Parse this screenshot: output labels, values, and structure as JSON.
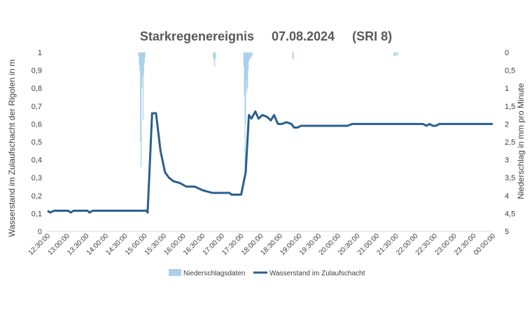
{
  "chart_data": {
    "type": "line",
    "title": "Starkregenereignis     07.08.2024     (SRI 8)",
    "ylabel_left": "Wasserstand im Zulaufschacht der Rigolen in m",
    "ylabel_right": "Niederschlag in mm pro Minute",
    "ylim_left": [
      0,
      1
    ],
    "ylim_right_inverted": [
      0,
      5
    ],
    "left_ticks": [
      "0",
      "0,1",
      "0,2",
      "0,3",
      "0,4",
      "0,5",
      "0,6",
      "0,7",
      "0,8",
      "0,9",
      "1"
    ],
    "right_ticks": [
      "0",
      "0,5",
      "1",
      "1,5",
      "2",
      "2,5",
      "3",
      "3,5",
      "4",
      "4,5",
      "5"
    ],
    "x_ticks": [
      "12:30:00",
      "13:00:00",
      "13:30:00",
      "14:00:00",
      "14:30:00",
      "15:00:00",
      "15:30:00",
      "16:00:00",
      "16:30:00",
      "17:00:00",
      "17:30:00",
      "18:00:00",
      "18:30:00",
      "19:00:00",
      "19:30:00",
      "20:00:00",
      "20:30:00",
      "21:00:00",
      "21:30:00",
      "22:00:00",
      "22:30:00",
      "23:00:00",
      "23:30:00",
      "00:00:00"
    ],
    "grid": false,
    "legend_position": "bottom",
    "series": [
      {
        "name": "Niederschlagsdaten",
        "kind": "bar",
        "axis": "right",
        "color": "#a9d1ea",
        "points": [
          [
            "14:51",
            0.1
          ],
          [
            "14:52",
            0.35
          ],
          [
            "14:53",
            0.5
          ],
          [
            "14:54",
            2.5
          ],
          [
            "14:55",
            3.2
          ],
          [
            "14:56",
            1.0
          ],
          [
            "14:57",
            0.7
          ],
          [
            "14:58",
            1.9
          ],
          [
            "14:59",
            0.6
          ],
          [
            "15:00",
            0.3
          ],
          [
            "15:01",
            0.15
          ],
          [
            "16:47",
            0.15
          ],
          [
            "16:48",
            0.2
          ],
          [
            "16:49",
            0.4
          ],
          [
            "16:50",
            0.2
          ],
          [
            "17:34",
            0.4
          ],
          [
            "17:35",
            1.2
          ],
          [
            "17:36",
            3.4
          ],
          [
            "17:37",
            2.0
          ],
          [
            "17:38",
            0.8
          ],
          [
            "17:39",
            1.1
          ],
          [
            "17:40",
            1.0
          ],
          [
            "17:41",
            0.5
          ],
          [
            "17:42",
            0.25
          ],
          [
            "17:43",
            0.15
          ],
          [
            "17:44",
            0.2
          ],
          [
            "17:45",
            0.1
          ],
          [
            "17:46",
            0.15
          ],
          [
            "17:47",
            0.1
          ],
          [
            "18:50",
            0.15
          ],
          [
            "18:51",
            0.2
          ],
          [
            "21:27",
            0.1
          ],
          [
            "21:28",
            0.1
          ],
          [
            "21:29",
            0.05
          ],
          [
            "21:30",
            0.1
          ],
          [
            "21:31",
            0.05
          ],
          [
            "21:33",
            0.08
          ]
        ]
      },
      {
        "name": "Wasserstand im Zulaufschacht",
        "kind": "line",
        "axis": "left",
        "color": "#2a5f8f",
        "points": [
          [
            "12:30",
            0.115
          ],
          [
            "12:34",
            0.105
          ],
          [
            "12:40",
            0.115
          ],
          [
            "12:48",
            0.115
          ],
          [
            "12:55",
            0.115
          ],
          [
            "13:02",
            0.115
          ],
          [
            "13:06",
            0.105
          ],
          [
            "13:10",
            0.115
          ],
          [
            "13:15",
            0.115
          ],
          [
            "13:25",
            0.115
          ],
          [
            "13:32",
            0.115
          ],
          [
            "13:35",
            0.105
          ],
          [
            "13:40",
            0.115
          ],
          [
            "13:45",
            0.115
          ],
          [
            "14:00",
            0.115
          ],
          [
            "14:30",
            0.115
          ],
          [
            "14:50",
            0.115
          ],
          [
            "15:03",
            0.115
          ],
          [
            "15:05",
            0.105
          ],
          [
            "15:12",
            0.66
          ],
          [
            "15:18",
            0.66
          ],
          [
            "15:25",
            0.45
          ],
          [
            "15:32",
            0.33
          ],
          [
            "15:38",
            0.3
          ],
          [
            "15:45",
            0.28
          ],
          [
            "15:55",
            0.27
          ],
          [
            "16:05",
            0.25
          ],
          [
            "16:18",
            0.25
          ],
          [
            "16:30",
            0.23
          ],
          [
            "16:40",
            0.22
          ],
          [
            "16:45",
            0.215
          ],
          [
            "17:00",
            0.215
          ],
          [
            "17:12",
            0.215
          ],
          [
            "17:15",
            0.205
          ],
          [
            "17:25",
            0.205
          ],
          [
            "17:30",
            0.205
          ],
          [
            "17:37",
            0.33
          ],
          [
            "17:42",
            0.65
          ],
          [
            "17:46",
            0.63
          ],
          [
            "17:52",
            0.67
          ],
          [
            "17:57",
            0.63
          ],
          [
            "18:03",
            0.65
          ],
          [
            "18:10",
            0.64
          ],
          [
            "18:16",
            0.62
          ],
          [
            "18:21",
            0.65
          ],
          [
            "18:27",
            0.6
          ],
          [
            "18:33",
            0.6
          ],
          [
            "18:40",
            0.61
          ],
          [
            "18:48",
            0.6
          ],
          [
            "18:52",
            0.58
          ],
          [
            "18:57",
            0.58
          ],
          [
            "19:03",
            0.59
          ],
          [
            "19:45",
            0.59
          ],
          [
            "20:15",
            0.59
          ],
          [
            "20:22",
            0.6
          ],
          [
            "21:00",
            0.6
          ],
          [
            "21:45",
            0.6
          ],
          [
            "22:12",
            0.6
          ],
          [
            "22:17",
            0.59
          ],
          [
            "22:22",
            0.6
          ],
          [
            "22:27",
            0.59
          ],
          [
            "22:32",
            0.59
          ],
          [
            "22:37",
            0.6
          ],
          [
            "23:00",
            0.6
          ],
          [
            "23:30",
            0.6
          ],
          [
            "00:00",
            0.6
          ]
        ]
      }
    ]
  }
}
